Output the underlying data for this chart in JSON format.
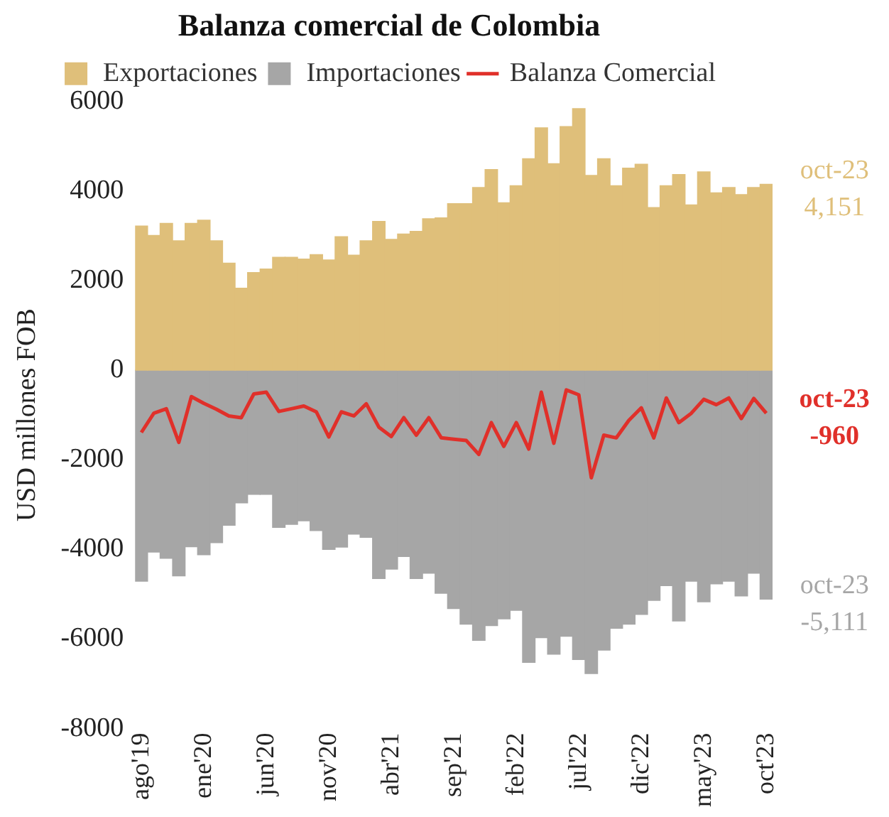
{
  "chart_data": {
    "type": "bar",
    "title": "Balanza comercial de Colombia",
    "ylabel": "USD millones FOB",
    "categories": [
      "ago'19",
      null,
      null,
      null,
      null,
      "ene'20",
      null,
      null,
      null,
      null,
      "jun'20",
      null,
      null,
      null,
      null,
      "nov'20",
      null,
      null,
      null,
      null,
      "abr'21",
      null,
      null,
      null,
      null,
      "sep'21",
      null,
      null,
      null,
      null,
      "feb'22",
      null,
      null,
      null,
      null,
      "jul'22",
      null,
      null,
      null,
      null,
      "dic'22",
      null,
      null,
      null,
      null,
      "may'23",
      null,
      null,
      null,
      null,
      "oct'23"
    ],
    "series": [
      {
        "name": "Exportaciones",
        "color": "#dfbf7a",
        "values": [
          3220,
          3010,
          3280,
          2890,
          3280,
          3350,
          2890,
          2390,
          1830,
          2180,
          2260,
          2520,
          2520,
          2480,
          2580,
          2460,
          2980,
          2570,
          2890,
          3320,
          2920,
          3040,
          3100,
          3380,
          3400,
          3720,
          3720,
          4080,
          4480,
          3740,
          4120,
          4720,
          5410,
          4610,
          5440,
          5840,
          4350,
          4720,
          4120,
          4510,
          4600,
          3630,
          4120,
          4370,
          3690,
          4430,
          3960,
          4080,
          3920,
          4080,
          4151
        ]
      },
      {
        "name": "Importaciones",
        "color": "#a6a6a6",
        "values": [
          -4710,
          -4060,
          -4200,
          -4590,
          -3940,
          -4120,
          -3850,
          -3460,
          -2960,
          -2770,
          -2770,
          -3510,
          -3440,
          -3360,
          -3580,
          -4000,
          -3950,
          -3660,
          -3730,
          -4650,
          -4440,
          -4160,
          -4650,
          -4530,
          -4980,
          -5320,
          -5670,
          -6030,
          -5700,
          -5550,
          -5360,
          -6520,
          -5970,
          -6340,
          -5940,
          -6460,
          -6770,
          -6250,
          -5760,
          -5670,
          -5450,
          -5140,
          -4810,
          -5600,
          -4710,
          -5170,
          -4770,
          -4710,
          -5040,
          -4530,
          -5111
        ]
      },
      {
        "name": "Balanza Comercial",
        "type": "line",
        "color": "#e0302a",
        "values": [
          -1390,
          -960,
          -860,
          -1610,
          -590,
          -740,
          -870,
          -1020,
          -1060,
          -530,
          -490,
          -920,
          -860,
          -800,
          -930,
          -1490,
          -930,
          -1020,
          -750,
          -1270,
          -1480,
          -1060,
          -1450,
          -1060,
          -1510,
          -1540,
          -1570,
          -1880,
          -1170,
          -1700,
          -1170,
          -1760,
          -490,
          -1630,
          -440,
          -550,
          -2400,
          -1450,
          -1510,
          -1120,
          -840,
          -1510,
          -620,
          -1170,
          -960,
          -650,
          -770,
          -620,
          -1080,
          -630,
          -960
        ]
      }
    ],
    "annotations": [
      {
        "text": "oct-23\n4,151",
        "x": "oct'23",
        "y": 4151
      },
      {
        "text": "oct-23\n-5,111",
        "x": "oct'23",
        "y": -5111
      },
      {
        "text": "oct-23\n-960",
        "x": "oct'23",
        "y": -960
      }
    ],
    "stacked": true,
    "marker": "none",
    "line_style": "solid",
    "ylim": [
      -8000,
      6000
    ],
    "yticks": [
      -8000,
      -6000,
      -4000,
      -2000,
      0,
      2000,
      4000,
      6000
    ],
    "grid": false,
    "legend": "top"
  }
}
